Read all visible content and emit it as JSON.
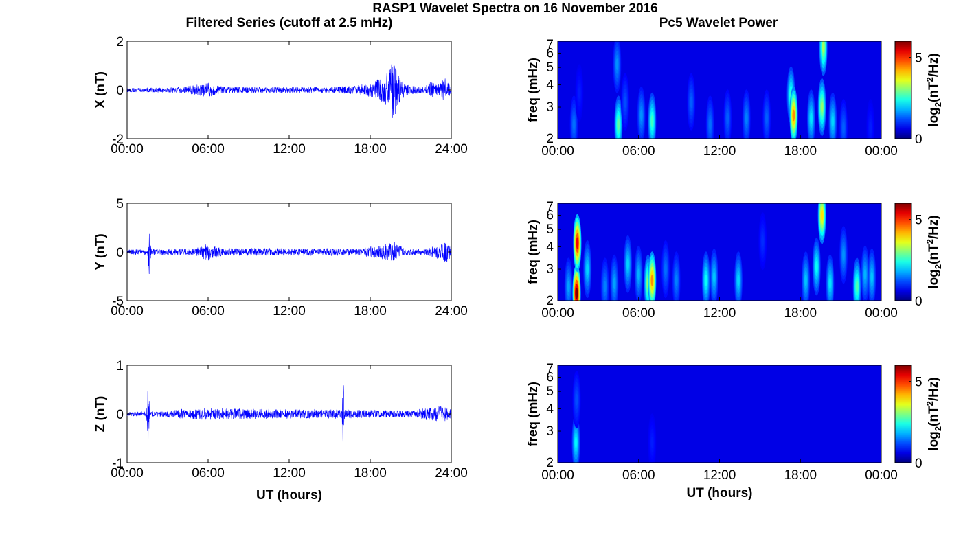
{
  "figure": {
    "title": "RASP1 Wavelet Spectra on 16 November 2016",
    "left_title": "Filtered Series (cutoff at 2.5 mHz)",
    "right_title": "Pc5 Wavelet Power"
  },
  "chart_data": [
    {
      "type": "line",
      "component": "X",
      "ylabel": "X (nT)",
      "xlabel": "",
      "xlim": [
        0,
        24
      ],
      "ylim": [
        -2,
        2
      ],
      "xticks": [
        "00:00",
        "06:00",
        "12:00",
        "18:00",
        "24:00"
      ],
      "yticks": [
        "-2",
        "0",
        "2"
      ],
      "series": [
        {
          "color": "#0000ff",
          "envelope": [
            [
              0,
              0.08
            ],
            [
              2,
              0.1
            ],
            [
              4,
              0.12
            ],
            [
              6,
              0.3
            ],
            [
              7,
              0.15
            ],
            [
              9,
              0.12
            ],
            [
              12,
              0.12
            ],
            [
              15,
              0.12
            ],
            [
              17,
              0.18
            ],
            [
              18,
              0.3
            ],
            [
              19,
              0.55
            ],
            [
              19.7,
              1.2
            ],
            [
              20.2,
              0.5
            ],
            [
              21,
              0.18
            ],
            [
              22,
              0.12
            ],
            [
              22.5,
              0.35
            ],
            [
              23,
              0.2
            ],
            [
              23.5,
              0.5
            ],
            [
              24,
              0.2
            ]
          ],
          "offset": 0
        }
      ]
    },
    {
      "type": "line",
      "component": "Y",
      "ylabel": "Y (nT)",
      "xlabel": "",
      "xlim": [
        0,
        24
      ],
      "ylim": [
        -5,
        5
      ],
      "xticks": [
        "00:00",
        "06:00",
        "12:00",
        "18:00",
        "24:00"
      ],
      "yticks": [
        "-5",
        "0",
        "5"
      ],
      "series": [
        {
          "color": "#0000ff",
          "envelope": [
            [
              0,
              0.25
            ],
            [
              1.5,
              0.3
            ],
            [
              1.6,
              2.7
            ],
            [
              1.8,
              0.3
            ],
            [
              5,
              0.35
            ],
            [
              6,
              0.9
            ],
            [
              7,
              0.4
            ],
            [
              10,
              0.4
            ],
            [
              12,
              0.35
            ],
            [
              15.5,
              0.4
            ],
            [
              17,
              0.3
            ],
            [
              19.8,
              1.0
            ],
            [
              20.5,
              0.35
            ],
            [
              22,
              0.3
            ],
            [
              23.2,
              0.8
            ],
            [
              23.6,
              1.2
            ],
            [
              24,
              0.5
            ]
          ],
          "offset": 0
        }
      ]
    },
    {
      "type": "line",
      "component": "Z",
      "ylabel": "Z (nT)",
      "xlabel": "UT (hours)",
      "xlim": [
        0,
        24
      ],
      "ylim": [
        -1,
        1
      ],
      "xticks": [
        "00:00",
        "06:00",
        "12:00",
        "18:00",
        "24:00"
      ],
      "yticks": [
        "-1",
        "0",
        "1"
      ],
      "series": [
        {
          "color": "#0000ff",
          "envelope": [
            [
              0,
              0.04
            ],
            [
              1.4,
              0.05
            ],
            [
              1.55,
              0.7
            ],
            [
              1.7,
              0.05
            ],
            [
              3,
              0.06
            ],
            [
              4,
              0.1
            ],
            [
              6,
              0.12
            ],
            [
              10,
              0.1
            ],
            [
              14,
              0.09
            ],
            [
              15.9,
              0.09
            ],
            [
              16,
              0.8
            ],
            [
              16.1,
              0.09
            ],
            [
              18,
              0.08
            ],
            [
              21,
              0.07
            ],
            [
              23.3,
              0.18
            ],
            [
              24,
              0.1
            ]
          ],
          "offset": 0
        }
      ]
    },
    {
      "type": "heatmap",
      "component": "X",
      "ylabel": "freq (mHz)",
      "xlabel": "",
      "xlim": [
        0,
        24
      ],
      "ylim": [
        2,
        7
      ],
      "yscale": "log",
      "xticks": [
        "00:00",
        "06:00",
        "12:00",
        "18:00",
        "00:00"
      ],
      "yticks": [
        "2",
        "3",
        "4",
        "5",
        "6",
        "7"
      ],
      "colorbar": {
        "label": "log2(nT2/Hz)",
        "range": [
          0,
          6
        ],
        "ticks": [
          "0",
          "5"
        ],
        "colormap": "jet"
      },
      "blobs": [
        {
          "t": 1.2,
          "f": 2.4,
          "level": 1.4
        },
        {
          "t": 1.6,
          "f": 3.6,
          "level": 0.9
        },
        {
          "t": 4.5,
          "f": 2.4,
          "level": 2.8
        },
        {
          "t": 4.4,
          "f": 5.2,
          "level": 1.6
        },
        {
          "t": 5.0,
          "f": 3.2,
          "level": 1.2
        },
        {
          "t": 6.2,
          "f": 2.7,
          "level": 1.6
        },
        {
          "t": 7.0,
          "f": 2.5,
          "level": 2.6
        },
        {
          "t": 9.9,
          "f": 3.2,
          "level": 1.3
        },
        {
          "t": 11.3,
          "f": 2.4,
          "level": 1.4
        },
        {
          "t": 12.6,
          "f": 2.6,
          "level": 1.3
        },
        {
          "t": 14.0,
          "f": 2.6,
          "level": 1.5
        },
        {
          "t": 15.5,
          "f": 2.6,
          "level": 1.3
        },
        {
          "t": 17.3,
          "f": 3.5,
          "level": 2.5
        },
        {
          "t": 17.5,
          "f": 2.7,
          "level": 4.4
        },
        {
          "t": 18.8,
          "f": 2.6,
          "level": 2.1
        },
        {
          "t": 19.6,
          "f": 3.0,
          "level": 3.1
        },
        {
          "t": 19.7,
          "f": 6.5,
          "level": 3.2
        },
        {
          "t": 20.4,
          "f": 2.5,
          "level": 2.0
        },
        {
          "t": 21.2,
          "f": 2.3,
          "level": 1.3
        },
        {
          "t": 23.2,
          "f": 2.3,
          "level": 0.9
        }
      ]
    },
    {
      "type": "heatmap",
      "component": "Y",
      "ylabel": "freq (mHz)",
      "xlabel": "",
      "xlim": [
        0,
        24
      ],
      "ylim": [
        2,
        7
      ],
      "yscale": "log",
      "xticks": [
        "00:00",
        "06:00",
        "12:00",
        "18:00",
        "00:00"
      ],
      "yticks": [
        "2",
        "3",
        "4",
        "5",
        "6",
        "7"
      ],
      "colorbar": {
        "label": "log2(nT2/Hz)",
        "range": [
          0,
          6
        ],
        "ticks": [
          "0",
          "5"
        ],
        "colormap": "jet"
      },
      "blobs": [
        {
          "t": 0.8,
          "f": 2.4,
          "level": 1.7
        },
        {
          "t": 1.4,
          "f": 2.2,
          "level": 6.0
        },
        {
          "t": 1.45,
          "f": 4.2,
          "level": 5.3
        },
        {
          "t": 2.2,
          "f": 3.0,
          "level": 2.0
        },
        {
          "t": 3.5,
          "f": 2.4,
          "level": 1.5
        },
        {
          "t": 4.2,
          "f": 2.5,
          "level": 1.7
        },
        {
          "t": 5.2,
          "f": 3.2,
          "level": 2.0
        },
        {
          "t": 6.0,
          "f": 2.8,
          "level": 1.8
        },
        {
          "t": 6.7,
          "f": 2.5,
          "level": 3.1
        },
        {
          "t": 7.0,
          "f": 2.6,
          "level": 4.4
        },
        {
          "t": 8.0,
          "f": 3.0,
          "level": 1.4
        },
        {
          "t": 8.8,
          "f": 2.6,
          "level": 1.5
        },
        {
          "t": 11.0,
          "f": 2.6,
          "level": 2.3
        },
        {
          "t": 11.6,
          "f": 2.7,
          "level": 1.9
        },
        {
          "t": 13.4,
          "f": 2.6,
          "level": 2.0
        },
        {
          "t": 15.2,
          "f": 4.3,
          "level": 1.0
        },
        {
          "t": 18.4,
          "f": 2.6,
          "level": 1.9
        },
        {
          "t": 19.2,
          "f": 3.1,
          "level": 2.3
        },
        {
          "t": 19.6,
          "f": 6.0,
          "level": 3.9
        },
        {
          "t": 20.2,
          "f": 2.5,
          "level": 2.1
        },
        {
          "t": 21.2,
          "f": 3.6,
          "level": 1.6
        },
        {
          "t": 22.2,
          "f": 2.4,
          "level": 2.7
        },
        {
          "t": 22.8,
          "f": 2.8,
          "level": 1.8
        },
        {
          "t": 23.3,
          "f": 2.7,
          "level": 1.9
        }
      ]
    },
    {
      "type": "heatmap",
      "component": "Z",
      "ylabel": "freq (mHz)",
      "xlabel": "UT (hours)",
      "xlim": [
        0,
        24
      ],
      "ylim": [
        2,
        7
      ],
      "yscale": "log",
      "xticks": [
        "00:00",
        "06:00",
        "12:00",
        "18:00",
        "00:00"
      ],
      "yticks": [
        "2",
        "3",
        "4",
        "5",
        "6",
        "7"
      ],
      "colorbar": {
        "label": "log2(nT2/Hz)",
        "range": [
          0,
          6
        ],
        "ticks": [
          "0",
          "5"
        ],
        "colormap": "jet"
      },
      "blobs": [
        {
          "t": 1.35,
          "f": 2.6,
          "level": 2.2
        },
        {
          "t": 1.4,
          "f": 4.5,
          "level": 1.2
        },
        {
          "t": 7.0,
          "f": 2.6,
          "level": 0.9
        }
      ]
    }
  ]
}
